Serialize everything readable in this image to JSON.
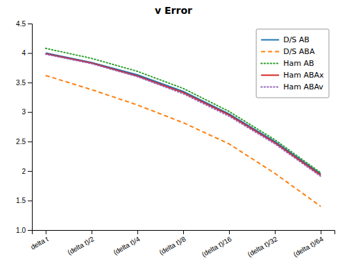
{
  "chart_data": {
    "type": "line",
    "title": "v Error",
    "categories": [
      "delta t",
      "(delta t)/2",
      "(delta t)/4",
      "(delta t)/8",
      "(delta t)/16",
      "(delta t)/32",
      "(delta t)/64"
    ],
    "ylim": [
      1.0,
      4.5
    ],
    "yticks": [
      {
        "value": 1.0,
        "label": "1.0"
      },
      1.5,
      2,
      2.5,
      3,
      3.5,
      4,
      4.5
    ],
    "grid": false,
    "legend": "upper right",
    "series": [
      {
        "name": "D/S AB",
        "line_style": "solid",
        "values": [
          4.0,
          3.84,
          3.63,
          3.35,
          2.97,
          2.5,
          1.95
        ]
      },
      {
        "name": "D/S ABA",
        "line_style": "dashed",
        "values": [
          3.62,
          3.38,
          3.12,
          2.82,
          2.46,
          1.96,
          1.4
        ]
      },
      {
        "name": "Ham AB",
        "line_style": "dotted",
        "values": [
          4.08,
          3.91,
          3.69,
          3.4,
          3.01,
          2.53,
          1.97
        ]
      },
      {
        "name": "Ham ABAx",
        "line_style": "solid",
        "values": [
          3.99,
          3.83,
          3.61,
          3.33,
          2.95,
          2.48,
          1.93
        ]
      },
      {
        "name": "Ham ABAv",
        "line_style": "dotted",
        "values": [
          3.98,
          3.82,
          3.6,
          3.31,
          2.93,
          2.46,
          1.91
        ]
      }
    ]
  }
}
